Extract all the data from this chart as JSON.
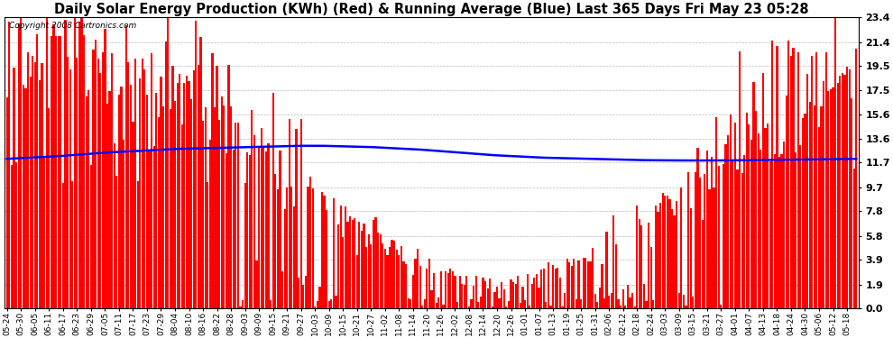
{
  "title": "Daily Solar Energy Production (KWh) (Red) & Running Average (Blue) Last 365 Days Fri May 23 05:28",
  "copyright": "Copyright 2008 Cartronics.com",
  "yticks": [
    0.0,
    1.9,
    3.9,
    5.8,
    7.8,
    9.7,
    11.7,
    13.6,
    15.6,
    17.5,
    19.5,
    21.4,
    23.4
  ],
  "ymax": 23.4,
  "ymin": 0.0,
  "bar_color": "#ff0000",
  "line_color": "#0000ff",
  "background_color": "#ffffff",
  "grid_color": "#bbbbbb",
  "title_fontsize": 10.5,
  "x_labels": [
    "05-24",
    "05-30",
    "06-05",
    "06-11",
    "06-17",
    "06-23",
    "06-29",
    "07-05",
    "07-11",
    "07-17",
    "07-23",
    "07-29",
    "08-04",
    "08-10",
    "08-16",
    "08-22",
    "08-28",
    "09-03",
    "09-09",
    "09-15",
    "09-21",
    "09-27",
    "10-03",
    "10-09",
    "10-15",
    "10-21",
    "10-27",
    "11-02",
    "11-08",
    "11-14",
    "11-20",
    "11-26",
    "12-02",
    "12-08",
    "12-14",
    "12-20",
    "12-26",
    "01-01",
    "01-07",
    "01-13",
    "01-19",
    "01-25",
    "01-31",
    "02-06",
    "02-12",
    "02-18",
    "02-24",
    "03-03",
    "03-09",
    "03-15",
    "03-21",
    "03-27",
    "04-01",
    "04-07",
    "04-13",
    "04-18",
    "04-24",
    "04-30",
    "05-06",
    "05-12",
    "05-18"
  ],
  "blue_line_y": [
    12.0,
    12.1,
    12.2,
    12.35,
    12.5,
    12.6,
    12.7,
    12.8,
    12.85,
    12.9,
    12.95,
    13.0,
    13.05,
    13.05,
    13.0,
    12.95,
    12.85,
    12.75,
    12.6,
    12.45,
    12.3,
    12.2,
    12.1,
    12.05,
    12.0,
    11.95,
    11.9,
    11.88,
    11.87,
    11.87,
    11.88,
    11.9,
    11.92,
    11.95,
    11.97,
    12.0
  ]
}
